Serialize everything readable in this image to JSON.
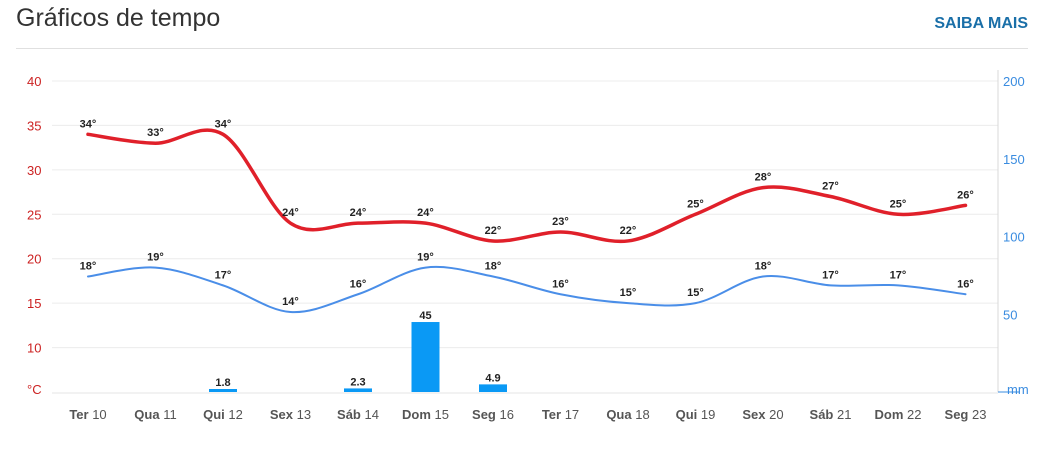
{
  "header": {
    "title": "Gráficos de tempo",
    "more_link": "SAIBA MAIS"
  },
  "colors": {
    "max": "#e0202a",
    "min": "#4a8ee8",
    "precip": "#0a99f5",
    "link": "#1a6fa8",
    "left_axis": "#cc2222",
    "right_axis": "#3a8ce0"
  },
  "chart_data": {
    "type": "line",
    "categories": [
      {
        "d": "Ter",
        "n": "10"
      },
      {
        "d": "Qua",
        "n": "11"
      },
      {
        "d": "Qui",
        "n": "12"
      },
      {
        "d": "Sex",
        "n": "13"
      },
      {
        "d": "Sáb",
        "n": "14"
      },
      {
        "d": "Dom",
        "n": "15"
      },
      {
        "d": "Seg",
        "n": "16"
      },
      {
        "d": "Ter",
        "n": "17"
      },
      {
        "d": "Qua",
        "n": "18"
      },
      {
        "d": "Qui",
        "n": "19"
      },
      {
        "d": "Sex",
        "n": "20"
      },
      {
        "d": "Sáb",
        "n": "21"
      },
      {
        "d": "Dom",
        "n": "22"
      },
      {
        "d": "Seg",
        "n": "23"
      }
    ],
    "series": [
      {
        "key": "max",
        "values": [
          34,
          33,
          34,
          24,
          24,
          24,
          22,
          23,
          22,
          25,
          28,
          27,
          25,
          26
        ],
        "labels": [
          "34°",
          "33°",
          "34°",
          "24°",
          "24°",
          "24°",
          "22°",
          "23°",
          "22°",
          "25°",
          "28°",
          "27°",
          "25°",
          "26°"
        ]
      },
      {
        "key": "min",
        "values": [
          18,
          19,
          17,
          14,
          16,
          19,
          18,
          16,
          15,
          15,
          18,
          17,
          17,
          16
        ],
        "labels": [
          "18°",
          "19°",
          "17°",
          "14°",
          "16°",
          "19°",
          "18°",
          "16°",
          "15°",
          "15°",
          "18°",
          "17°",
          "17°",
          "16°"
        ]
      }
    ],
    "precip": {
      "values": [
        null,
        null,
        1.8,
        null,
        2.3,
        45,
        4.9,
        null,
        null,
        null,
        null,
        null,
        null,
        null
      ],
      "labels": [
        "",
        "",
        "1.8",
        "",
        "2.3",
        "45",
        "4.9",
        "",
        "",
        "",
        "",
        "",
        "",
        ""
      ]
    },
    "left_axis": {
      "ticks": [
        "40",
        "35",
        "30",
        "25",
        "20",
        "15",
        "10"
      ],
      "unit": "°C",
      "ylim": [
        5,
        40
      ]
    },
    "right_axis": {
      "ticks": [
        "200",
        "150",
        "100",
        "50"
      ],
      "unit": "mm",
      "ylim": [
        0,
        200
      ]
    },
    "grid": true
  }
}
